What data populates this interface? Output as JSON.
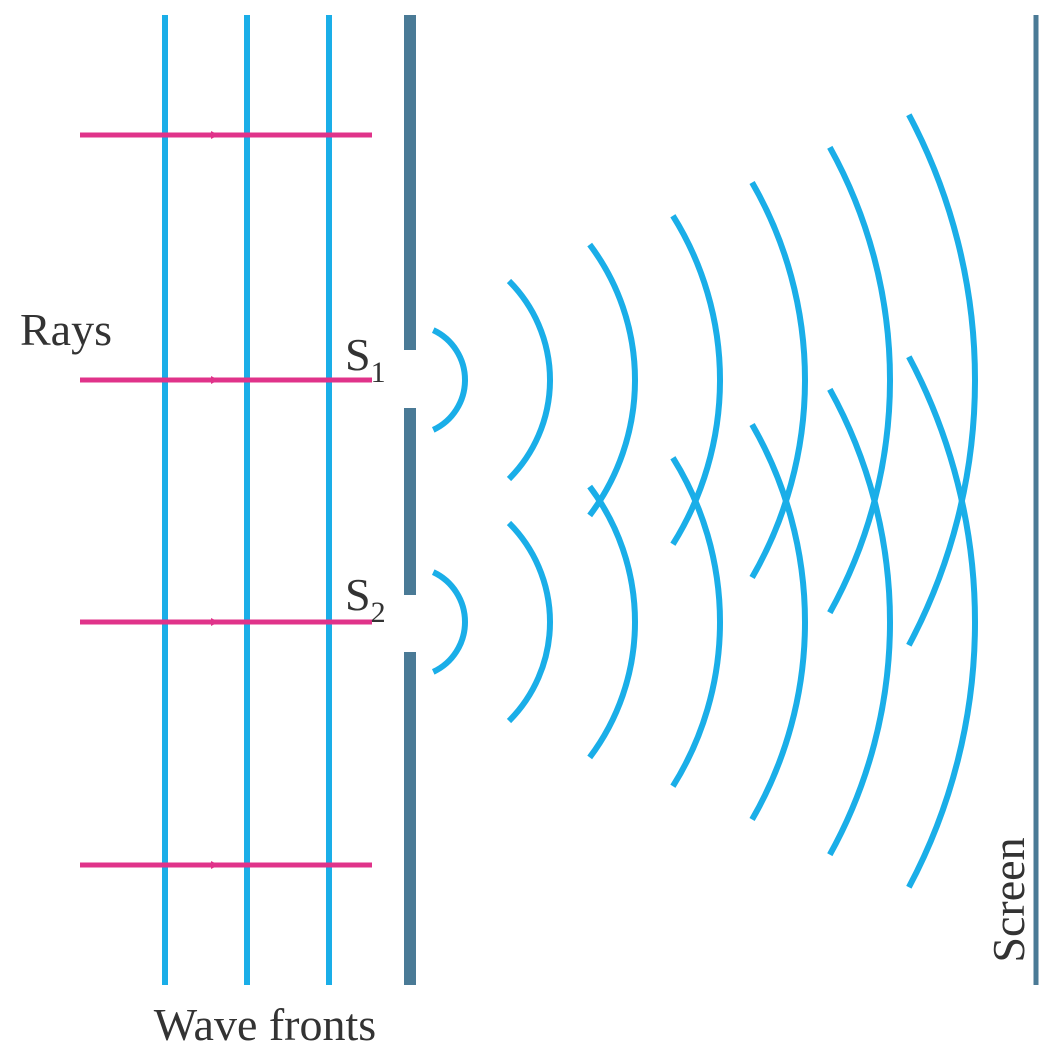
{
  "labels": {
    "rays": "Rays",
    "slit_1": {
      "letter": "S",
      "subscript": "1"
    },
    "slit_2": {
      "letter": "S",
      "subscript": "2"
    },
    "wave_fronts": "Wave fronts",
    "screen": "Screen"
  }
}
